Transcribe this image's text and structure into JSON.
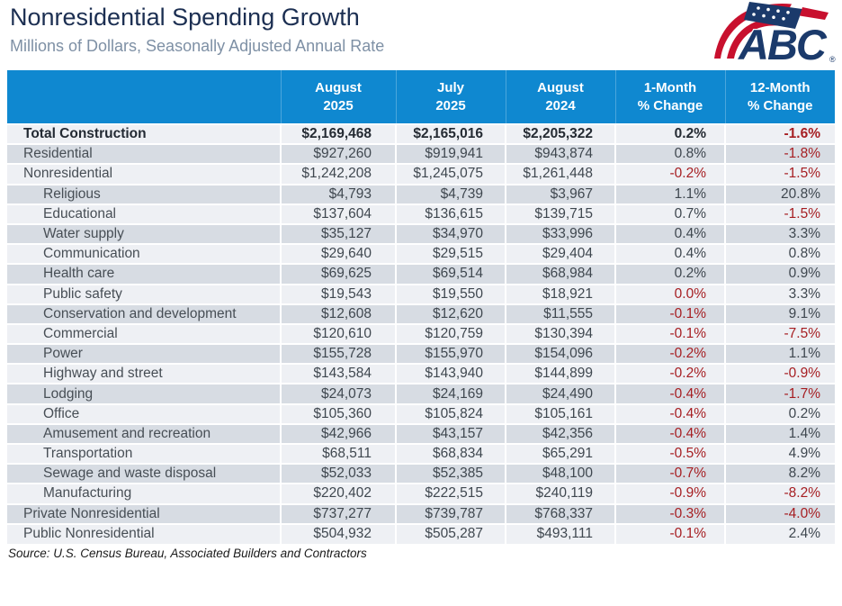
{
  "header": {
    "title": "Nonresidential Spending Growth",
    "subtitle": "Millions of Dollars, Seasonally Adjusted Annual Rate",
    "logo_text": "ABC",
    "logo_registered_mark": "®"
  },
  "footer": {
    "source": "Source: U.S. Census Bureau, Associated Builders and Contractors"
  },
  "colors": {
    "table_header_bg": "#0f88d0",
    "row_light": "#eef0f4",
    "row_dark": "#d7dce3",
    "negative_value": "#a61e22",
    "value_text": "#3f474f",
    "title_navy": "#1c2f52",
    "subtitle_gray": "#7e90a5",
    "logo_navy": "#1b3a6b",
    "logo_red": "#c8102e"
  },
  "chart_data": {
    "type": "table",
    "title": "Nonresidential Spending Growth",
    "subtitle": "Millions of Dollars, Seasonally Adjusted Annual Rate",
    "source": "Source: U.S. Census Bureau, Associated Builders and Contractors",
    "columns": [
      "",
      "August 2025",
      "July 2025",
      "August 2024",
      "1-Month % Change",
      "12-Month % Change"
    ],
    "column_header_lines": [
      [
        "",
        ""
      ],
      [
        "August",
        "2025"
      ],
      [
        "July",
        "2025"
      ],
      [
        "August",
        "2024"
      ],
      [
        "1-Month",
        "% Change"
      ],
      [
        "12-Month",
        "% Change"
      ]
    ],
    "negative_rule": "percent values less than or equal to zero are shown in dark red",
    "rows": [
      {
        "label": "Total Construction",
        "indent": 0,
        "bold": true,
        "values": [
          "$2,169,468",
          "$2,165,016",
          "$2,205,322",
          "0.2%",
          "-1.6%"
        ]
      },
      {
        "label": "Residential",
        "indent": 0,
        "bold": false,
        "values": [
          "$927,260",
          "$919,941",
          "$943,874",
          "0.8%",
          "-1.8%"
        ]
      },
      {
        "label": "Nonresidential",
        "indent": 0,
        "bold": false,
        "values": [
          "$1,242,208",
          "$1,245,075",
          "$1,261,448",
          "-0.2%",
          "-1.5%"
        ]
      },
      {
        "label": "Religious",
        "indent": 1,
        "bold": false,
        "values": [
          "$4,793",
          "$4,739",
          "$3,967",
          "1.1%",
          "20.8%"
        ]
      },
      {
        "label": "Educational",
        "indent": 1,
        "bold": false,
        "values": [
          "$137,604",
          "$136,615",
          "$139,715",
          "0.7%",
          "-1.5%"
        ]
      },
      {
        "label": "Water supply",
        "indent": 1,
        "bold": false,
        "values": [
          "$35,127",
          "$34,970",
          "$33,996",
          "0.4%",
          "3.3%"
        ]
      },
      {
        "label": "Communication",
        "indent": 1,
        "bold": false,
        "values": [
          "$29,640",
          "$29,515",
          "$29,404",
          "0.4%",
          "0.8%"
        ]
      },
      {
        "label": "Health care",
        "indent": 1,
        "bold": false,
        "values": [
          "$69,625",
          "$69,514",
          "$68,984",
          "0.2%",
          "0.9%"
        ]
      },
      {
        "label": "Public safety",
        "indent": 1,
        "bold": false,
        "values": [
          "$19,543",
          "$19,550",
          "$18,921",
          "0.0%",
          "3.3%"
        ]
      },
      {
        "label": "Conservation and development",
        "indent": 1,
        "bold": false,
        "values": [
          "$12,608",
          "$12,620",
          "$11,555",
          "-0.1%",
          "9.1%"
        ]
      },
      {
        "label": "Commercial",
        "indent": 1,
        "bold": false,
        "values": [
          "$120,610",
          "$120,759",
          "$130,394",
          "-0.1%",
          "-7.5%"
        ]
      },
      {
        "label": "Power",
        "indent": 1,
        "bold": false,
        "values": [
          "$155,728",
          "$155,970",
          "$154,096",
          "-0.2%",
          "1.1%"
        ]
      },
      {
        "label": "Highway and street",
        "indent": 1,
        "bold": false,
        "values": [
          "$143,584",
          "$143,940",
          "$144,899",
          "-0.2%",
          "-0.9%"
        ]
      },
      {
        "label": "Lodging",
        "indent": 1,
        "bold": false,
        "values": [
          "$24,073",
          "$24,169",
          "$24,490",
          "-0.4%",
          "-1.7%"
        ]
      },
      {
        "label": "Office",
        "indent": 1,
        "bold": false,
        "values": [
          "$105,360",
          "$105,824",
          "$105,161",
          "-0.4%",
          "0.2%"
        ]
      },
      {
        "label": "Amusement and recreation",
        "indent": 1,
        "bold": false,
        "values": [
          "$42,966",
          "$43,157",
          "$42,356",
          "-0.4%",
          "1.4%"
        ]
      },
      {
        "label": "Transportation",
        "indent": 1,
        "bold": false,
        "values": [
          "$68,511",
          "$68,834",
          "$65,291",
          "-0.5%",
          "4.9%"
        ]
      },
      {
        "label": "Sewage and waste disposal",
        "indent": 1,
        "bold": false,
        "values": [
          "$52,033",
          "$52,385",
          "$48,100",
          "-0.7%",
          "8.2%"
        ]
      },
      {
        "label": "Manufacturing",
        "indent": 1,
        "bold": false,
        "values": [
          "$220,402",
          "$222,515",
          "$240,119",
          "-0.9%",
          "-8.2%"
        ]
      },
      {
        "label": "Private Nonresidential",
        "indent": 0,
        "bold": false,
        "values": [
          "$737,277",
          "$739,787",
          "$768,337",
          "-0.3%",
          "-4.0%"
        ]
      },
      {
        "label": "Public Nonresidential",
        "indent": 0,
        "bold": false,
        "values": [
          "$504,932",
          "$505,287",
          "$493,111",
          "-0.1%",
          "2.4%"
        ]
      }
    ]
  }
}
